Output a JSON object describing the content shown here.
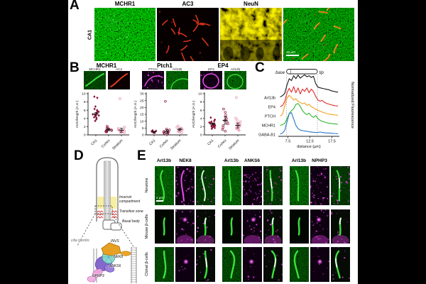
{
  "figure": {
    "panelA": {
      "label": "A",
      "titles": [
        "MCHR1",
        "AC3",
        "NeuN"
      ],
      "row_label": "CA1",
      "scale_bar": "10 µm"
    },
    "panelB": {
      "label": "B",
      "groups": [
        {
          "title": "MCHR1",
          "thumb_labels": [
            "MCHR1",
            "AC3"
          ]
        },
        {
          "title": "Ptch1",
          "thumb_labels": [
            "PTCH",
            "Arl13b"
          ]
        },
        {
          "title": "EP4",
          "thumb_labels": [
            "EP4",
            "Arl13b"
          ]
        }
      ]
    },
    "panelC": {
      "label": "C",
      "base_label": "base",
      "tip_label": "tip"
    },
    "panelD": {
      "label": "D",
      "inversin": "Inversin compartment",
      "transition": "Transition zone",
      "basal": "Basal body",
      "membrane": "cilia membr.",
      "invs": "INVS",
      "nek8": "NEK8",
      "anks6": "ANKS6",
      "nphp3": "NPHP3"
    },
    "panelE": {
      "label": "E",
      "groups": [
        {
          "labels": [
            "Arl13b",
            "NEK8"
          ]
        },
        {
          "labels": [
            "Arl13b",
            "ANKS6"
          ]
        },
        {
          "labels": [
            "Arl13b",
            "NPHP3"
          ]
        }
      ],
      "rows": [
        "Neurons",
        "Mouse β-cells",
        "Clonal β-cells"
      ],
      "scale_bar": "2 µm"
    }
  },
  "colors": {
    "green": "#2ee02e",
    "red": "#d8321a",
    "yellow": "#d8c31e",
    "magenta": "#e240e2",
    "dark_red": "#8b1538",
    "pink": "#e591ad"
  },
  "chart_data": [
    {
      "type": "scatter",
      "title": "MCHR1",
      "ylabel": "AUC/length (A.U.)",
      "ylim": [
        0,
        10
      ],
      "yticks": [
        0,
        2,
        4,
        6,
        8,
        10
      ],
      "categories": [
        "CA1",
        "Cortex",
        "Striatum"
      ],
      "series": [
        {
          "name": "CA1",
          "values": [
            9.3,
            9.0,
            6.9,
            6.3,
            6.0,
            5.8,
            5.6,
            5.4,
            5.2,
            5.1,
            5.0,
            4.9,
            4.7,
            4.5,
            4.3,
            4.1,
            3.8,
            3.4
          ]
        },
        {
          "name": "Cortex",
          "values": [
            2.1,
            1.8,
            1.6,
            1.45,
            1.3,
            1.2,
            1.1,
            1.0,
            0.9,
            0.8,
            0.7
          ]
        },
        {
          "name": "Striatum",
          "values": [
            8.8,
            1.9,
            1.6,
            1.4,
            1.25,
            1.1,
            1.0,
            0.9,
            0.8,
            0.7,
            0.6,
            0.5
          ]
        }
      ],
      "means": [
        5.1,
        1.25,
        1.15
      ],
      "errors": [
        0.35,
        0.25,
        0.5
      ]
    },
    {
      "type": "scatter",
      "title": "Ptch1",
      "ylabel": "AUC/length (A.U.)",
      "ylim": [
        0,
        30
      ],
      "yticks": [
        0,
        5,
        10,
        15,
        20,
        25,
        30
      ],
      "categories": [
        "CA1",
        "Cortex",
        "Striatum"
      ],
      "series": [
        {
          "name": "CA1",
          "values": [
            3.3,
            2.9,
            2.6,
            2.3,
            2.1,
            1.9,
            1.7,
            1.5
          ]
        },
        {
          "name": "Cortex",
          "values": [
            24.5,
            4.3,
            3.6,
            3.0,
            2.6,
            2.2,
            1.9,
            1.6,
            1.3,
            1.0,
            0.8
          ]
        },
        {
          "name": "Striatum",
          "values": [
            6.6,
            5.6,
            5.0,
            4.5,
            4.0,
            3.6,
            3.2,
            2.8,
            2.4,
            2.0,
            1.6
          ]
        }
      ],
      "means": [
        2.3,
        2.6,
        4.0
      ],
      "errors": [
        0.3,
        1.3,
        0.8
      ]
    },
    {
      "type": "scatter",
      "title": "EP4",
      "ylabel": "AUC/length (A.U.)",
      "ylim": [
        0,
        10
      ],
      "yticks": [
        0,
        2,
        4,
        6,
        8,
        10
      ],
      "categories": [
        "CA1",
        "Cortex",
        "Striatum"
      ],
      "series": [
        {
          "name": "CA1",
          "values": [
            4.2,
            3.7,
            3.4,
            3.2,
            3.0,
            2.9,
            2.8,
            2.7,
            2.6,
            2.5,
            2.4,
            2.3,
            2.2,
            2.1,
            2.0,
            1.9,
            1.7,
            1.5
          ]
        },
        {
          "name": "Cortex",
          "values": [
            6.3,
            5.5,
            4.8,
            4.3,
            3.9,
            3.5,
            3.1,
            2.7,
            2.3,
            1.8,
            1.3,
            0.9
          ]
        },
        {
          "name": "Striatum",
          "values": [
            9.1,
            4.1,
            3.6,
            3.2,
            2.9,
            2.7,
            2.5,
            2.3,
            2.1,
            1.9,
            1.7,
            1.5,
            1.3,
            1.1
          ]
        }
      ],
      "means": [
        2.6,
        3.5,
        2.3
      ],
      "errors": [
        0.3,
        0.9,
        0.6
      ]
    },
    {
      "type": "line",
      "xlabel": "distance (µm)",
      "ylabel": "Normalized Fluorescence",
      "xticks": [
        7.5,
        12.5,
        17.5
      ],
      "xlim": [
        5,
        19.5
      ],
      "annotations": [
        "base",
        "tip"
      ],
      "x": [
        5.8,
        6.3,
        6.8,
        7.3,
        7.8,
        8.3,
        8.8,
        9.3,
        9.8,
        10.3,
        10.8,
        11.3,
        11.8,
        12.3,
        12.8,
        13.3,
        13.8,
        14.3,
        14.8,
        15.3,
        15.8,
        16.3,
        16.8,
        17.3,
        17.8,
        18.3,
        18.8
      ],
      "series": [
        {
          "name": "Arl13b",
          "color": "#151515",
          "values": [
            0.05,
            0.1,
            0.2,
            0.55,
            0.8,
            0.72,
            0.92,
            0.8,
            0.95,
            0.82,
            0.9,
            0.96,
            0.88,
            0.92,
            0.85,
            0.9,
            0.6,
            0.45,
            0.42,
            0.4,
            0.38,
            0.36,
            0.34,
            0.3,
            0.28,
            0.26,
            0.24
          ]
        },
        {
          "name": "EP4",
          "color": "#e02828",
          "values": [
            0.03,
            0.08,
            0.25,
            0.6,
            0.78,
            0.62,
            0.85,
            0.6,
            0.8,
            0.55,
            0.75,
            0.65,
            0.8,
            0.6,
            0.75,
            0.65,
            0.45,
            0.3,
            0.25,
            0.28,
            0.2,
            0.16,
            0.13,
            0.1,
            0.08,
            0.06,
            0.05
          ]
        },
        {
          "name": "PTCH",
          "color": "#f0a020",
          "values": [
            0.02,
            0.1,
            0.45,
            0.75,
            0.88,
            0.78,
            0.68,
            0.74,
            0.62,
            0.58,
            0.52,
            0.56,
            0.46,
            0.5,
            0.4,
            0.36,
            0.3,
            0.26,
            0.22,
            0.18,
            0.15,
            0.12,
            0.1,
            0.08,
            0.07,
            0.06,
            0.05
          ]
        },
        {
          "name": "MCHR1",
          "color": "#2eb82e",
          "values": [
            0.02,
            0.04,
            0.1,
            0.3,
            0.5,
            0.62,
            0.7,
            0.88,
            0.92,
            0.8,
            0.62,
            0.52,
            0.46,
            0.52,
            0.4,
            0.34,
            0.42,
            0.3,
            0.22,
            0.18,
            0.15,
            0.12,
            0.1,
            0.09,
            0.08,
            0.07,
            0.06
          ]
        },
        {
          "name": "GABA-B1",
          "color": "#2878c8",
          "values": [
            0.04,
            0.08,
            0.2,
            0.55,
            0.88,
            0.92,
            0.66,
            0.4,
            0.26,
            0.2,
            0.18,
            0.16,
            0.15,
            0.13,
            0.12,
            0.11,
            0.1,
            0.1,
            0.12,
            0.1,
            0.09,
            0.08,
            0.08,
            0.07,
            0.06,
            0.06,
            0.05
          ]
        }
      ]
    }
  ]
}
